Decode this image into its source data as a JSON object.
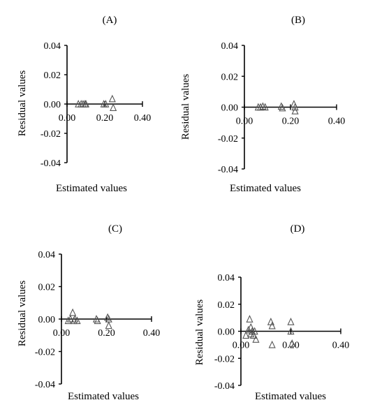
{
  "chart_data": [
    {
      "panel_label": "(A)",
      "type": "scatter",
      "xlabel": "Estimated values",
      "ylabel": "Residual values",
      "xlim": [
        0,
        0.4
      ],
      "ylim": [
        -0.04,
        0.04
      ],
      "x_ticks": [
        "0.00",
        "0.20",
        "0.40"
      ],
      "y_ticks": [
        "0.04",
        "0.02",
        "0.00",
        "-0.02",
        "-0.04"
      ],
      "grid": false,
      "marker": "triangle",
      "series": [
        {
          "x": [
            0.06,
            0.075,
            0.085,
            0.095,
            0.1,
            0.195,
            0.205,
            0.24,
            0.245
          ],
          "y": [
            0.0,
            0.0,
            0.0,
            0.0,
            0.0,
            0.0,
            0.0,
            0.0035,
            -0.0025
          ]
        }
      ]
    },
    {
      "panel_label": "(B)",
      "type": "scatter",
      "xlabel": "Estimated values",
      "ylabel": "Residual values",
      "xlim": [
        0,
        0.4
      ],
      "ylim": [
        -0.04,
        0.04
      ],
      "x_ticks": [
        "0.00",
        "0.20",
        "0.40"
      ],
      "y_ticks": [
        "0.04",
        "0.02",
        "0.00",
        "-0.02",
        "-0.04"
      ],
      "grid": false,
      "marker": "triangle",
      "series": [
        {
          "x": [
            0.06,
            0.07,
            0.08,
            0.09,
            0.16,
            0.165,
            0.215,
            0.22,
            0.22
          ],
          "y": [
            0.0,
            0.0,
            0.0005,
            0.0,
            0.0005,
            -0.0005,
            0.002,
            0.0,
            -0.0025
          ]
        }
      ]
    },
    {
      "panel_label": "(C)",
      "type": "scatter",
      "xlabel": "Estimated values",
      "ylabel": "Residual values",
      "xlim": [
        0,
        0.4
      ],
      "ylim": [
        -0.04,
        0.04
      ],
      "x_ticks": [
        "0.00",
        "0.20",
        "0.40"
      ],
      "y_ticks": [
        "0.04",
        "0.02",
        "0.00",
        "-0.02",
        "-0.04"
      ],
      "grid": false,
      "marker": "triangle",
      "series": [
        {
          "x": [
            0.03,
            0.04,
            0.05,
            0.055,
            0.06,
            0.07,
            0.155,
            0.16,
            0.205,
            0.21,
            0.21
          ],
          "y": [
            -0.001,
            0.0,
            0.004,
            -0.001,
            0.0,
            -0.001,
            0.0,
            -0.001,
            0.001,
            0.0,
            -0.004
          ]
        }
      ]
    },
    {
      "panel_label": "(D)",
      "type": "scatter",
      "xlabel": "Estimated values",
      "ylabel": "Residual values",
      "xlim": [
        0,
        0.4
      ],
      "ylim": [
        -0.04,
        0.04
      ],
      "x_ticks": [
        "0.00",
        "0.20",
        "0.40"
      ],
      "y_ticks": [
        "0.04",
        "0.02",
        "0.00",
        "-0.02",
        "-0.04"
      ],
      "grid": false,
      "marker": "triangle",
      "series": [
        {
          "x": [
            0.02,
            0.03,
            0.035,
            0.04,
            0.04,
            0.045,
            0.05,
            0.055,
            0.06,
            0.12,
            0.125,
            0.125,
            0.2,
            0.2,
            0.205
          ],
          "y": [
            -0.003,
            0.001,
            0.009,
            0.003,
            -0.002,
            0.0,
            -0.003,
            0.0,
            -0.006,
            0.007,
            0.004,
            -0.01,
            0.007,
            0.0,
            -0.009
          ]
        }
      ]
    }
  ]
}
